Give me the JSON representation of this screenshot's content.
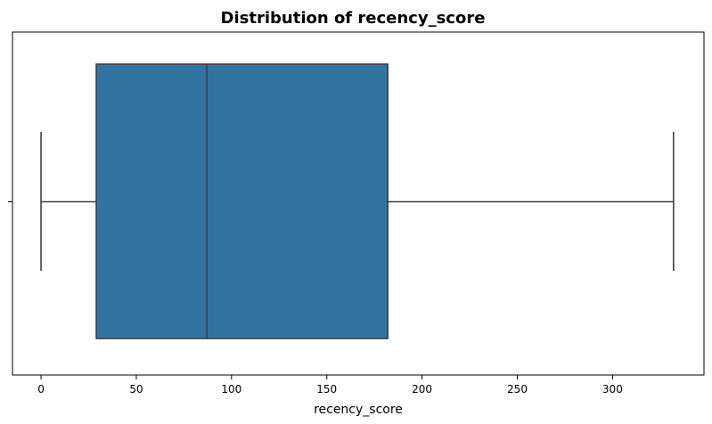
{
  "chart_data": {
    "type": "box",
    "title": "Distribution of recency_score",
    "xlabel": "recency_score",
    "ylabel": "",
    "orientation": "horizontal",
    "xlim": [
      -15,
      348
    ],
    "xticks": [
      0,
      50,
      100,
      150,
      200,
      250,
      300
    ],
    "box": {
      "whisker_low": 0,
      "q1": 29,
      "median": 87,
      "q3": 182,
      "whisker_high": 332
    },
    "box_color": "#3274a1",
    "line_color": "#3f3f3f",
    "grid": false
  }
}
